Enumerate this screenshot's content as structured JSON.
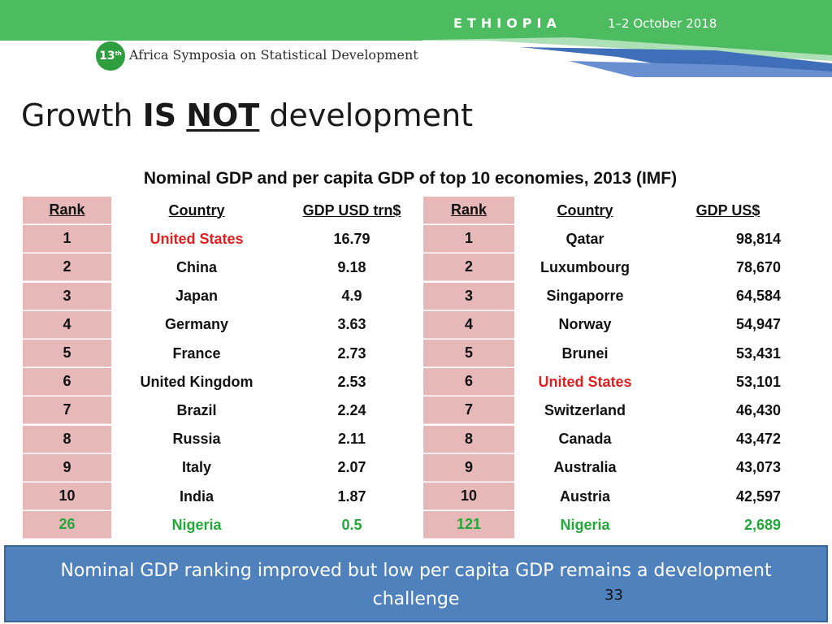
{
  "header": {
    "country": "ETHIOPIA",
    "dates": "1–2 October 2018",
    "logo_number": "13",
    "logo_suffix": "th",
    "symposium": "Africa Symposia on Statistical Development",
    "colors": {
      "green": "#4dbb5f",
      "blue": "#3f6fb8",
      "dark_green": "#2e9e3f"
    }
  },
  "slide": {
    "title_part1": "Growth",
    "title_is": "IS",
    "title_not": "NOT",
    "title_part2": "development",
    "subtitle": "Nominal GDP and per capita GDP of top 10 economies, 2013 (IMF)"
  },
  "left_table": {
    "headers": {
      "rank": "Rank",
      "country": "Country",
      "gdp": "GDP USD trn$"
    },
    "rows": [
      {
        "rank": "1",
        "country": "United States",
        "gdp": "16.79",
        "style": "red"
      },
      {
        "rank": "2",
        "country": "China",
        "gdp": "9.18",
        "style": ""
      },
      {
        "rank": "3",
        "country": "Japan",
        "gdp": "4.9",
        "style": ""
      },
      {
        "rank": "4",
        "country": "Germany",
        "gdp": "3.63",
        "style": ""
      },
      {
        "rank": "5",
        "country": "France",
        "gdp": "2.73",
        "style": ""
      },
      {
        "rank": "6",
        "country": "United Kingdom",
        "gdp": "2.53",
        "style": ""
      },
      {
        "rank": "7",
        "country": "Brazil",
        "gdp": "2.24",
        "style": ""
      },
      {
        "rank": "8",
        "country": "Russia",
        "gdp": "2.11",
        "style": ""
      },
      {
        "rank": "9",
        "country": "Italy",
        "gdp": "2.07",
        "style": ""
      },
      {
        "rank": "10",
        "country": "India",
        "gdp": "1.87",
        "style": ""
      },
      {
        "rank": "26",
        "country": "Nigeria",
        "gdp": "0.5",
        "style": "green"
      }
    ]
  },
  "right_table": {
    "headers": {
      "rank": "Rank",
      "country": "Country",
      "gdp": "GDP US$"
    },
    "rows": [
      {
        "rank": "1",
        "country": "Qatar",
        "gdp": "98,814",
        "style": ""
      },
      {
        "rank": "2",
        "country": "Luxumbourg",
        "gdp": "78,670",
        "style": ""
      },
      {
        "rank": "3",
        "country": "Singaporre",
        "gdp": "64,584",
        "style": ""
      },
      {
        "rank": "4",
        "country": "Norway",
        "gdp": "54,947",
        "style": ""
      },
      {
        "rank": "5",
        "country": "Brunei",
        "gdp": "53,431",
        "style": ""
      },
      {
        "rank": "6",
        "country": "United States",
        "gdp": "53,101",
        "style": "red"
      },
      {
        "rank": "7",
        "country": "Switzerland",
        "gdp": "46,430",
        "style": ""
      },
      {
        "rank": "8",
        "country": "Canada",
        "gdp": "43,472",
        "style": ""
      },
      {
        "rank": "9",
        "country": "Australia",
        "gdp": "43,073",
        "style": ""
      },
      {
        "rank": "10",
        "country": "Austria",
        "gdp": "42,597",
        "style": ""
      },
      {
        "rank": "121",
        "country": "Nigeria",
        "gdp": "2,689",
        "style": "green"
      }
    ]
  },
  "footer": {
    "text": "Nominal GDP ranking improved but low per capita GDP remains a development challenge",
    "page_number": "33"
  }
}
